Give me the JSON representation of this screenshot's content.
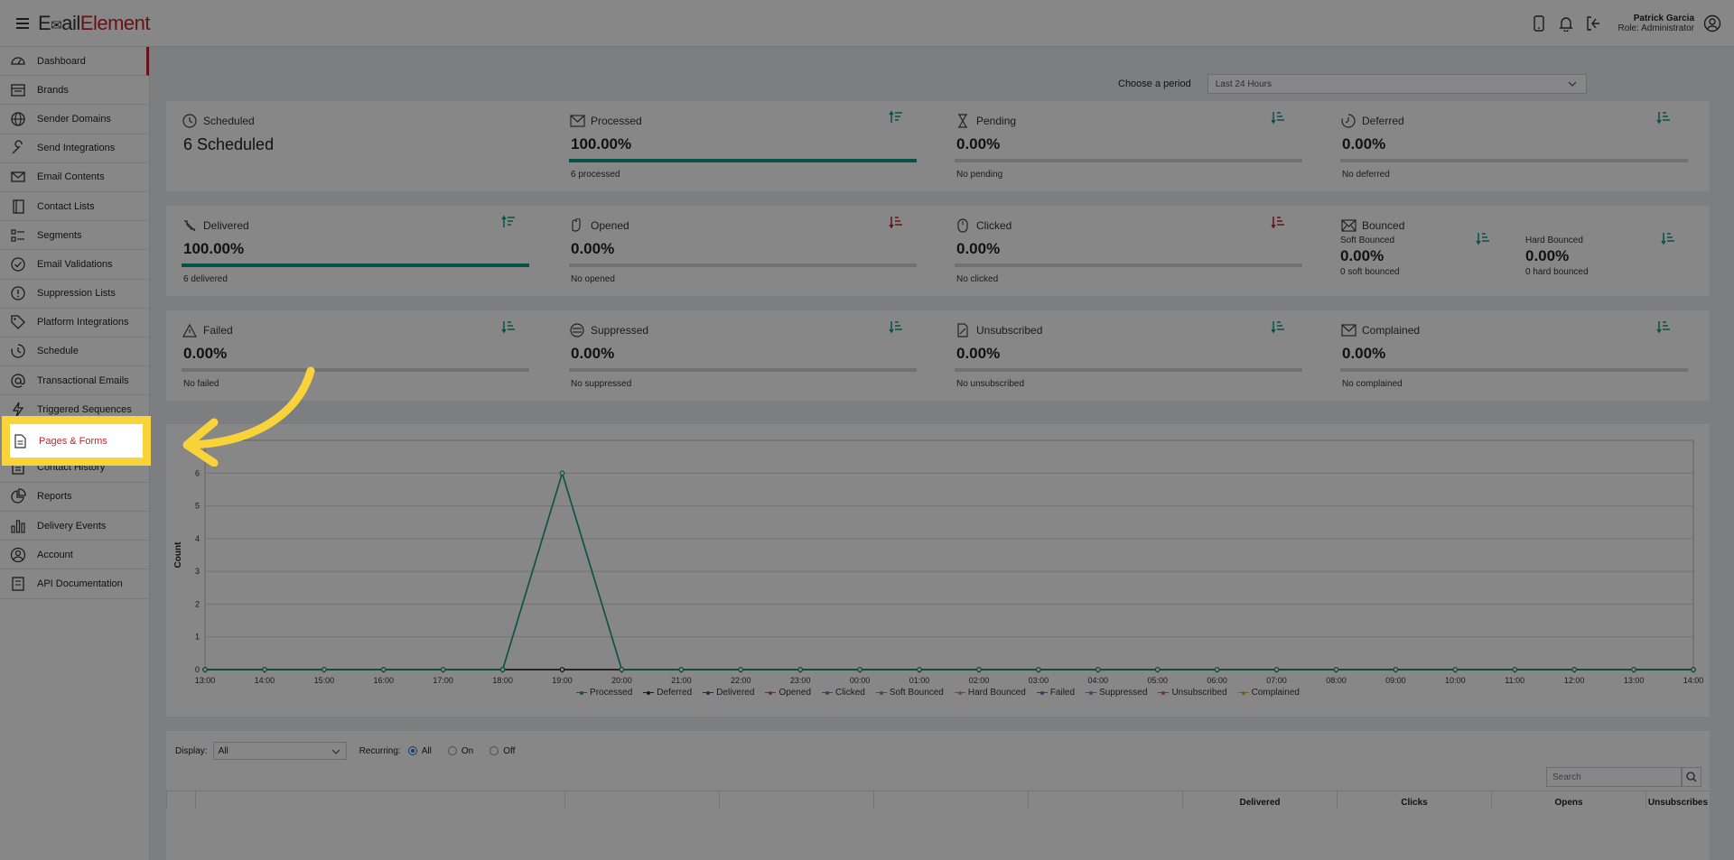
{
  "header": {
    "logo_part1": "E",
    "logo_part2": "ail",
    "logo_part3": "Element",
    "user_name": "Patrick Garcia",
    "user_role": "Role: Administrator"
  },
  "sidebar": {
    "items": [
      {
        "label": "Dashboard",
        "icon": "dashboard-icon"
      },
      {
        "label": "Brands",
        "icon": "brands-icon"
      },
      {
        "label": "Sender Domains",
        "icon": "globe-icon"
      },
      {
        "label": "Send Integrations",
        "icon": "wrench-icon"
      },
      {
        "label": "Email Contents",
        "icon": "envelope-icon"
      },
      {
        "label": "Contact Lists",
        "icon": "book-icon"
      },
      {
        "label": "Segments",
        "icon": "segments-icon"
      },
      {
        "label": "Email Validations",
        "icon": "check-circle-icon"
      },
      {
        "label": "Suppression Lists",
        "icon": "exclamation-icon"
      },
      {
        "label": "Platform Integrations",
        "icon": "tag-icon"
      },
      {
        "label": "Schedule",
        "icon": "schedule-icon"
      },
      {
        "label": "Transactional Emails",
        "icon": "at-icon"
      },
      {
        "label": "Triggered Sequences",
        "icon": "lightning-icon"
      },
      {
        "label": "Pages & Forms",
        "icon": "document-icon"
      },
      {
        "label": "Contact History",
        "icon": "history-icon"
      },
      {
        "label": "Reports",
        "icon": "pie-icon"
      },
      {
        "label": "Delivery Events",
        "icon": "bar-chart-icon"
      },
      {
        "label": "Account",
        "icon": "user-circle-icon"
      },
      {
        "label": "API Documentation",
        "icon": "api-doc-icon"
      }
    ]
  },
  "period": {
    "label": "Choose a period",
    "selected": "Last 24 Hours"
  },
  "stats": {
    "scheduled": {
      "title": "Scheduled",
      "value": "6 Scheduled"
    },
    "processed": {
      "title": "Processed",
      "value": "100.00%",
      "sub": "6 processed",
      "fill": 1.0
    },
    "pending": {
      "title": "Pending",
      "value": "0.00%",
      "sub": "No pending",
      "fill": 0
    },
    "deferred": {
      "title": "Deferred",
      "value": "0.00%",
      "sub": "No deferred",
      "fill": 0
    },
    "delivered": {
      "title": "Delivered",
      "value": "100.00%",
      "sub": "6 delivered",
      "fill": 1.0
    },
    "opened": {
      "title": "Opened",
      "value": "0.00%",
      "sub": "No opened",
      "fill": 0
    },
    "clicked": {
      "title": "Clicked",
      "value": "0.00%",
      "sub": "No clicked",
      "fill": 0
    },
    "bounced": {
      "title": "Bounced",
      "soft_label": "Soft Bounced",
      "soft_value": "0.00%",
      "soft_sub": "0 soft bounced",
      "hard_label": "Hard Bounced",
      "hard_value": "0.00%",
      "hard_sub": "0 hard bounced"
    },
    "failed": {
      "title": "Failed",
      "value": "0.00%",
      "sub": "No failed",
      "fill": 0
    },
    "suppressed": {
      "title": "Suppressed",
      "value": "0.00%",
      "sub": "No suppressed",
      "fill": 0
    },
    "unsubscribed": {
      "title": "Unsubscribed",
      "value": "0.00%",
      "sub": "No unsubscribed",
      "fill": 0
    },
    "complained": {
      "title": "Complained",
      "value": "0.00%",
      "sub": "No complained",
      "fill": 0
    }
  },
  "chart_data": {
    "type": "line",
    "ylabel": "Count",
    "ylim": [
      0,
      7
    ],
    "yticks": [
      0,
      1,
      2,
      3,
      4,
      5,
      6
    ],
    "categories": [
      "13:00",
      "14:00",
      "15:00",
      "16:00",
      "17:00",
      "18:00",
      "19:00",
      "20:00",
      "21:00",
      "22:00",
      "23:00",
      "00:00",
      "01:00",
      "02:00",
      "03:00",
      "04:00",
      "05:00",
      "06:00",
      "07:00",
      "08:00",
      "09:00",
      "10:00",
      "11:00",
      "12:00",
      "13:00",
      "14:00"
    ],
    "series": [
      {
        "name": "Processed",
        "color": "#18a085",
        "values": [
          0,
          0,
          0,
          0,
          0,
          0,
          6,
          0,
          0,
          0,
          0,
          0,
          0,
          0,
          0,
          0,
          0,
          0,
          0,
          0,
          0,
          0,
          0,
          0,
          0,
          0
        ]
      },
      {
        "name": "Deferred",
        "color": "#333333",
        "values": [
          0,
          0,
          0,
          0,
          0,
          0,
          0,
          0,
          0,
          0,
          0,
          0,
          0,
          0,
          0,
          0,
          0,
          0,
          0,
          0,
          0,
          0,
          0,
          0,
          0,
          0
        ]
      },
      {
        "name": "Delivered",
        "color": "#2b5ea8",
        "values": [
          0,
          0,
          0,
          0,
          0,
          0,
          6,
          0,
          0,
          0,
          0,
          0,
          0,
          0,
          0,
          0,
          0,
          0,
          0,
          0,
          0,
          0,
          0,
          0,
          0,
          0
        ]
      },
      {
        "name": "Opened",
        "color": "#d9534f",
        "values": [
          0,
          0,
          0,
          0,
          0,
          0,
          0,
          0,
          0,
          0,
          0,
          0,
          0,
          0,
          0,
          0,
          0,
          0,
          0,
          0,
          0,
          0,
          0,
          0,
          0,
          0
        ]
      },
      {
        "name": "Clicked",
        "color": "#c24fc9",
        "values": [
          0,
          0,
          0,
          0,
          0,
          0,
          0,
          0,
          0,
          0,
          0,
          0,
          0,
          0,
          0,
          0,
          0,
          0,
          0,
          0,
          0,
          0,
          0,
          0,
          0,
          0
        ]
      },
      {
        "name": "Soft Bounced",
        "color": "#8aa431",
        "values": [
          0,
          0,
          0,
          0,
          0,
          0,
          0,
          0,
          0,
          0,
          0,
          0,
          0,
          0,
          0,
          0,
          0,
          0,
          0,
          0,
          0,
          0,
          0,
          0,
          0,
          0
        ]
      },
      {
        "name": "Hard Bounced",
        "color": "#d87da0",
        "values": [
          0,
          0,
          0,
          0,
          0,
          0,
          0,
          0,
          0,
          0,
          0,
          0,
          0,
          0,
          0,
          0,
          0,
          0,
          0,
          0,
          0,
          0,
          0,
          0,
          0,
          0
        ]
      },
      {
        "name": "Failed",
        "color": "#7b5ed0",
        "values": [
          0,
          0,
          0,
          0,
          0,
          0,
          0,
          0,
          0,
          0,
          0,
          0,
          0,
          0,
          0,
          0,
          0,
          0,
          0,
          0,
          0,
          0,
          0,
          0,
          0,
          0
        ]
      },
      {
        "name": "Suppressed",
        "color": "#5b9bd5",
        "values": [
          0,
          0,
          0,
          0,
          0,
          0,
          0,
          0,
          0,
          0,
          0,
          0,
          0,
          0,
          0,
          0,
          0,
          0,
          0,
          0,
          0,
          0,
          0,
          0,
          0,
          0
        ]
      },
      {
        "name": "Unsubscribed",
        "color": "#e8662f",
        "values": [
          0,
          0,
          0,
          0,
          0,
          0,
          0,
          0,
          0,
          0,
          0,
          0,
          0,
          0,
          0,
          0,
          0,
          0,
          0,
          0,
          0,
          0,
          0,
          0,
          0,
          0
        ]
      },
      {
        "name": "Complained",
        "color": "#e3b32c",
        "values": [
          0,
          0,
          0,
          0,
          0,
          0,
          0,
          0,
          0,
          0,
          0,
          0,
          0,
          0,
          0,
          0,
          0,
          0,
          0,
          0,
          0,
          0,
          0,
          0,
          0,
          0
        ]
      }
    ],
    "grid": true,
    "legend": "bottom"
  },
  "table": {
    "display_label": "Display:",
    "display_value": "All",
    "recurring_label": "Recurring:",
    "radio_all": "All",
    "radio_on": "On",
    "radio_off": "Off",
    "search_placeholder": "Search",
    "columns": [
      "Delivered",
      "Clicks",
      "Opens",
      "Unsubscribes"
    ]
  },
  "highlight": {
    "label": "Pages & Forms"
  },
  "colors": {
    "brand": "#c0252e",
    "accent": "#0e9a8f",
    "highlight": "#f8d43a"
  }
}
